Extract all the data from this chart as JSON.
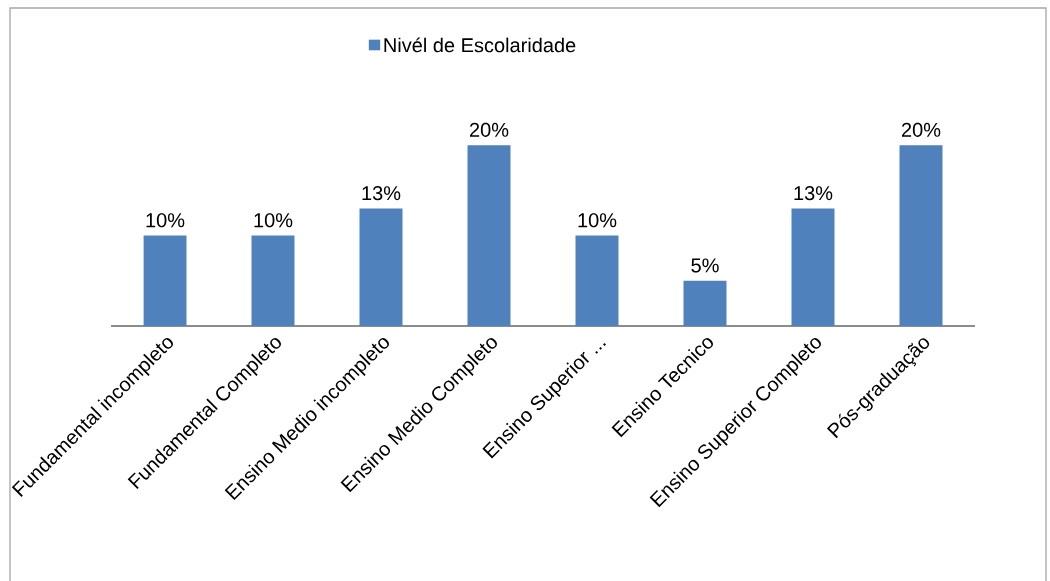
{
  "chart_data": {
    "type": "bar",
    "categories": [
      "Fundamental incompleto",
      "Fundamental Completo",
      "Ensino Medio incompleto",
      "Ensino Medio Completo",
      "Ensino Superior ...",
      "Ensino Tecnico",
      "Ensino Superior Completo",
      "Pós-graduação"
    ],
    "series": [
      {
        "name": "Nivél de Escolaridade",
        "color": "#4f81bd",
        "values": [
          10,
          10,
          13,
          20,
          10,
          5,
          13,
          20
        ],
        "value_labels": [
          "10%",
          "10%",
          "13%",
          "20%",
          "10%",
          "5%",
          "13%",
          "20%"
        ]
      }
    ],
    "legend": "top"
  }
}
